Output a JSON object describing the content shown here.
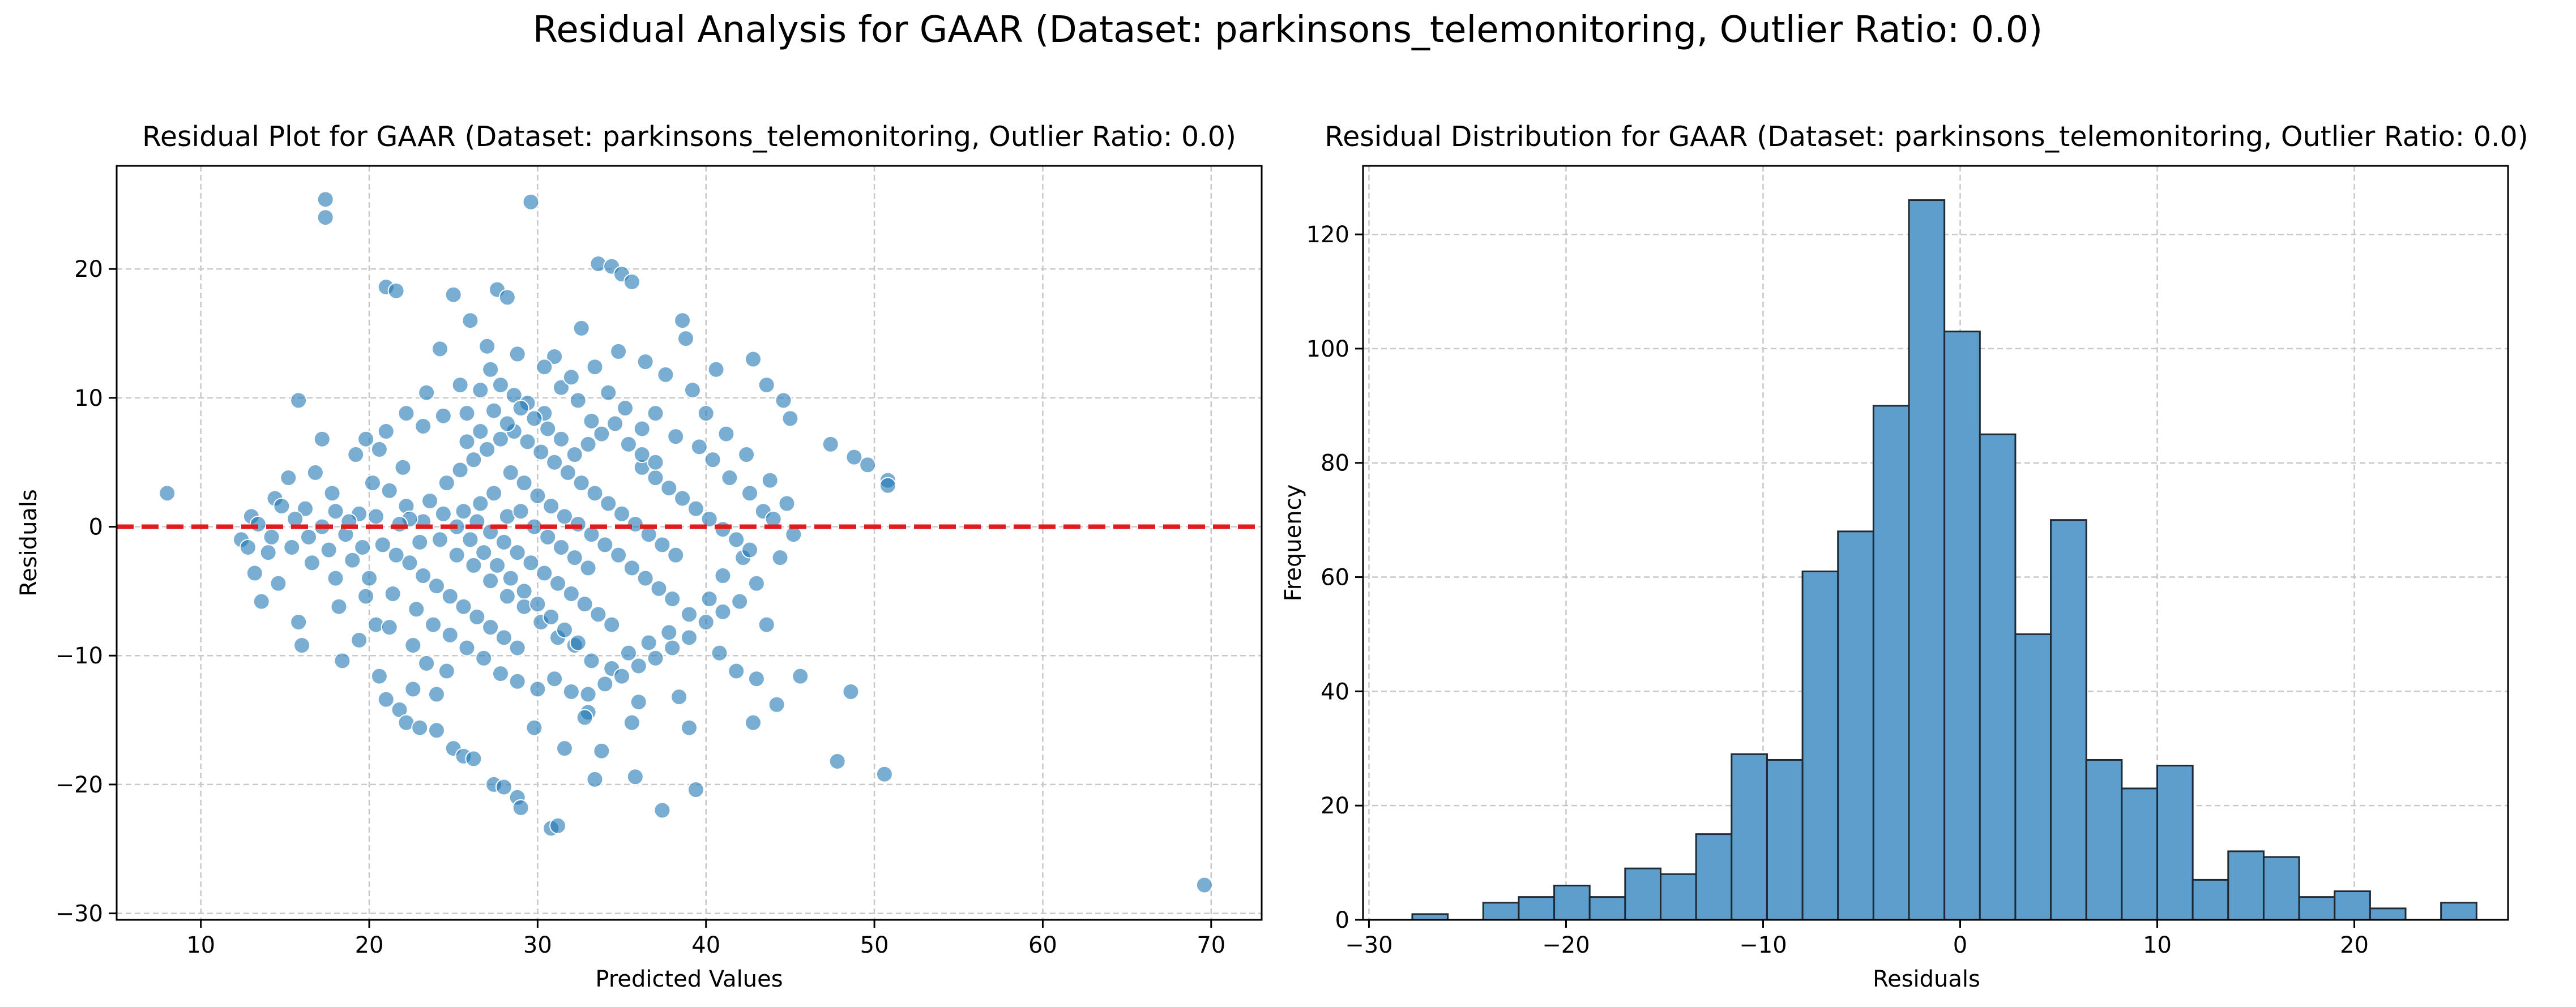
{
  "suptitle": "Residual Analysis for GAAR (Dataset: parkinsons_telemonitoring, Outlier Ratio: 0.0)",
  "colors": {
    "point": "#1f77b4",
    "bar": "#5d9ecd",
    "bar_edge": "#1f2a35",
    "zero_line": "#e31a1c",
    "grid": "#c8c8c8"
  },
  "chart_data": [
    {
      "type": "scatter",
      "title": "Residual Plot for GAAR (Dataset: parkinsons_telemonitoring, Outlier Ratio: 0.0)",
      "xlabel": "Predicted Values",
      "ylabel": "Residuals",
      "xlim": [
        5,
        73
      ],
      "ylim": [
        -30.5,
        28
      ],
      "xticks": [
        10,
        20,
        30,
        40,
        50,
        60,
        70
      ],
      "yticks": [
        -30,
        -20,
        -10,
        0,
        10,
        20
      ],
      "grid": true,
      "reference_line": {
        "y": 0,
        "style": "dashed",
        "color": "red"
      },
      "points": [
        [
          17.4,
          25.4
        ],
        [
          17.4,
          24.0
        ],
        [
          29.6,
          25.2
        ],
        [
          21.0,
          18.6
        ],
        [
          21.6,
          18.3
        ],
        [
          25.0,
          18.0
        ],
        [
          27.6,
          18.4
        ],
        [
          28.2,
          17.8
        ],
        [
          33.6,
          20.4
        ],
        [
          34.4,
          20.2
        ],
        [
          35.0,
          19.6
        ],
        [
          35.6,
          19.0
        ],
        [
          38.6,
          16.0
        ],
        [
          38.8,
          14.6
        ],
        [
          15.8,
          9.8
        ],
        [
          47.4,
          6.4
        ],
        [
          48.8,
          5.4
        ],
        [
          49.6,
          4.8
        ],
        [
          50.8,
          3.6
        ],
        [
          50.8,
          3.2
        ],
        [
          8.0,
          2.6
        ],
        [
          44.6,
          9.8
        ],
        [
          45.0,
          8.4
        ],
        [
          43.6,
          11.0
        ],
        [
          42.8,
          13.0
        ],
        [
          40.6,
          12.2
        ],
        [
          31.0,
          13.2
        ],
        [
          26.0,
          16.0
        ],
        [
          27.0,
          14.0
        ],
        [
          32.6,
          15.4
        ],
        [
          12.4,
          -1.0
        ],
        [
          13.2,
          -3.6
        ],
        [
          13.6,
          -5.8
        ],
        [
          15.8,
          -7.4
        ],
        [
          16.0,
          -9.2
        ],
        [
          18.4,
          -10.4
        ],
        [
          20.6,
          -11.6
        ],
        [
          21.0,
          -13.4
        ],
        [
          21.8,
          -14.2
        ],
        [
          22.2,
          -15.2
        ],
        [
          23.0,
          -15.6
        ],
        [
          24.0,
          -15.8
        ],
        [
          25.0,
          -17.2
        ],
        [
          25.6,
          -17.8
        ],
        [
          26.2,
          -18.0
        ],
        [
          27.4,
          -20.0
        ],
        [
          28.0,
          -20.2
        ],
        [
          28.8,
          -21.0
        ],
        [
          29.0,
          -21.8
        ],
        [
          30.8,
          -23.4
        ],
        [
          31.2,
          -23.2
        ],
        [
          33.4,
          -19.6
        ],
        [
          35.8,
          -19.4
        ],
        [
          37.4,
          -22.0
        ],
        [
          39.4,
          -20.4
        ],
        [
          42.8,
          -15.2
        ],
        [
          44.2,
          -13.8
        ],
        [
          45.6,
          -11.6
        ],
        [
          48.6,
          -12.8
        ],
        [
          47.8,
          -18.2
        ],
        [
          50.6,
          -19.2
        ],
        [
          69.6,
          -27.8
        ],
        [
          41.8,
          -11.2
        ],
        [
          43.0,
          -11.8
        ],
        [
          39.0,
          -15.6
        ],
        [
          36.0,
          -13.6
        ],
        [
          33.0,
          -14.4
        ],
        [
          29.8,
          -15.6
        ],
        [
          31.6,
          -17.2
        ],
        [
          33.8,
          -17.4
        ],
        [
          24.0,
          -13.0
        ],
        [
          22.6,
          -12.6
        ],
        [
          19.4,
          -8.8
        ],
        [
          20.4,
          -7.6
        ],
        [
          18.0,
          -4.0
        ],
        [
          14.6,
          -4.4
        ],
        [
          13.0,
          0.8
        ],
        [
          14.4,
          2.2
        ],
        [
          15.2,
          3.8
        ],
        [
          16.8,
          4.2
        ],
        [
          17.2,
          6.8
        ],
        [
          19.2,
          5.6
        ],
        [
          20.6,
          6.0
        ],
        [
          22.0,
          4.6
        ],
        [
          23.2,
          7.8
        ],
        [
          24.4,
          8.6
        ],
        [
          25.8,
          8.8
        ],
        [
          26.6,
          10.6
        ],
        [
          27.8,
          11.0
        ],
        [
          28.6,
          10.2
        ],
        [
          29.4,
          9.6
        ],
        [
          30.4,
          8.8
        ],
        [
          31.4,
          10.8
        ],
        [
          32.4,
          9.8
        ],
        [
          33.2,
          8.2
        ],
        [
          34.2,
          10.4
        ],
        [
          35.2,
          9.2
        ],
        [
          36.2,
          7.6
        ],
        [
          37.0,
          8.8
        ],
        [
          38.2,
          7.0
        ],
        [
          39.6,
          6.2
        ],
        [
          40.4,
          5.2
        ],
        [
          41.4,
          3.8
        ],
        [
          42.6,
          2.6
        ],
        [
          43.4,
          1.2
        ],
        [
          44.0,
          0.6
        ],
        [
          42.2,
          -2.4
        ],
        [
          41.0,
          -3.8
        ],
        [
          40.2,
          -5.6
        ],
        [
          39.0,
          -6.8
        ],
        [
          37.8,
          -8.2
        ],
        [
          36.6,
          -9.0
        ],
        [
          35.4,
          -9.8
        ],
        [
          34.4,
          -11.0
        ],
        [
          33.2,
          -10.4
        ],
        [
          32.2,
          -9.2
        ],
        [
          31.2,
          -8.6
        ],
        [
          30.2,
          -7.4
        ],
        [
          29.2,
          -6.2
        ],
        [
          28.2,
          -5.4
        ],
        [
          27.2,
          -4.2
        ],
        [
          26.2,
          -3.0
        ],
        [
          25.2,
          -2.2
        ],
        [
          24.2,
          -1.0
        ],
        [
          23.2,
          0.4
        ],
        [
          22.2,
          1.6
        ],
        [
          21.2,
          2.8
        ],
        [
          20.2,
          3.4
        ],
        [
          19.4,
          1.0
        ],
        [
          18.6,
          -0.6
        ],
        [
          17.6,
          -1.8
        ],
        [
          16.6,
          -2.8
        ],
        [
          15.4,
          -1.6
        ],
        [
          14.2,
          -0.8
        ],
        [
          13.4,
          0.2
        ],
        [
          16.2,
          1.4
        ],
        [
          17.8,
          2.6
        ],
        [
          19.0,
          -2.6
        ],
        [
          20.0,
          -4.0
        ],
        [
          21.4,
          -5.2
        ],
        [
          22.8,
          -6.4
        ],
        [
          23.8,
          -7.6
        ],
        [
          24.8,
          -8.4
        ],
        [
          25.8,
          -9.4
        ],
        [
          26.8,
          -10.2
        ],
        [
          27.8,
          -11.4
        ],
        [
          28.8,
          -12.0
        ],
        [
          30.0,
          -12.6
        ],
        [
          31.0,
          -11.8
        ],
        [
          32.0,
          -12.8
        ],
        [
          33.0,
          -13.0
        ],
        [
          34.0,
          -12.2
        ],
        [
          35.0,
          -11.6
        ],
        [
          36.0,
          -10.8
        ],
        [
          37.0,
          -10.2
        ],
        [
          38.0,
          -9.4
        ],
        [
          39.0,
          -8.6
        ],
        [
          40.0,
          -7.4
        ],
        [
          41.0,
          -6.6
        ],
        [
          42.0,
          -5.8
        ],
        [
          43.0,
          -4.4
        ],
        [
          28.4,
          4.2
        ],
        [
          29.2,
          3.4
        ],
        [
          30.0,
          2.4
        ],
        [
          30.8,
          1.6
        ],
        [
          31.6,
          0.8
        ],
        [
          32.4,
          0.2
        ],
        [
          33.2,
          -0.6
        ],
        [
          34.0,
          -1.4
        ],
        [
          34.8,
          -2.2
        ],
        [
          35.6,
          -3.2
        ],
        [
          36.4,
          -4.0
        ],
        [
          37.2,
          -4.8
        ],
        [
          38.0,
          -5.6
        ],
        [
          25.6,
          1.2
        ],
        [
          26.4,
          0.4
        ],
        [
          27.2,
          -0.4
        ],
        [
          28.0,
          -1.2
        ],
        [
          28.8,
          -2.0
        ],
        [
          29.6,
          -2.8
        ],
        [
          30.4,
          -3.6
        ],
        [
          31.2,
          -4.4
        ],
        [
          32.0,
          -5.2
        ],
        [
          32.8,
          -6.0
        ],
        [
          33.6,
          -6.8
        ],
        [
          34.4,
          -7.6
        ],
        [
          24.6,
          3.4
        ],
        [
          25.4,
          4.4
        ],
        [
          26.2,
          5.2
        ],
        [
          27.0,
          6.0
        ],
        [
          27.8,
          6.8
        ],
        [
          28.6,
          7.4
        ],
        [
          29.4,
          6.6
        ],
        [
          30.2,
          5.8
        ],
        [
          31.0,
          5.0
        ],
        [
          31.8,
          4.2
        ],
        [
          32.6,
          3.4
        ],
        [
          33.4,
          2.6
        ],
        [
          34.2,
          1.8
        ],
        [
          35.0,
          1.0
        ],
        [
          35.8,
          0.2
        ],
        [
          36.6,
          -0.6
        ],
        [
          37.4,
          -1.4
        ],
        [
          38.2,
          -2.2
        ],
        [
          22.4,
          -2.8
        ],
        [
          23.2,
          -3.8
        ],
        [
          24.0,
          -4.6
        ],
        [
          24.8,
          -5.4
        ],
        [
          25.6,
          -6.2
        ],
        [
          26.4,
          -7.0
        ],
        [
          27.2,
          -7.8
        ],
        [
          28.0,
          -8.6
        ],
        [
          28.8,
          -9.4
        ],
        [
          26.6,
          1.8
        ],
        [
          27.4,
          2.6
        ],
        [
          28.2,
          0.8
        ],
        [
          29.0,
          1.2
        ],
        [
          29.8,
          0.0
        ],
        [
          30.6,
          -0.8
        ],
        [
          31.4,
          -1.6
        ],
        [
          32.2,
          -2.4
        ],
        [
          33.0,
          -3.2
        ],
        [
          23.6,
          2.0
        ],
        [
          24.4,
          1.0
        ],
        [
          25.2,
          0.0
        ],
        [
          26.0,
          -1.0
        ],
        [
          26.8,
          -2.0
        ],
        [
          27.6,
          -3.0
        ],
        [
          28.4,
          -4.0
        ],
        [
          29.2,
          -5.0
        ],
        [
          30.0,
          -6.0
        ],
        [
          30.8,
          -7.0
        ],
        [
          31.6,
          -8.0
        ],
        [
          32.4,
          -9.0
        ],
        [
          36.2,
          4.6
        ],
        [
          37.0,
          3.8
        ],
        [
          37.8,
          3.0
        ],
        [
          38.6,
          2.2
        ],
        [
          39.4,
          1.4
        ],
        [
          40.2,
          0.6
        ],
        [
          41.0,
          -0.2
        ],
        [
          41.8,
          -1.0
        ],
        [
          42.6,
          -1.8
        ],
        [
          35.4,
          6.4
        ],
        [
          36.2,
          5.6
        ],
        [
          37.0,
          5.0
        ],
        [
          34.6,
          8.0
        ],
        [
          33.8,
          7.2
        ],
        [
          33.0,
          6.4
        ],
        [
          32.2,
          5.6
        ],
        [
          31.4,
          6.8
        ],
        [
          30.6,
          7.6
        ],
        [
          29.8,
          8.4
        ],
        [
          29.0,
          9.2
        ],
        [
          28.2,
          8.0
        ],
        [
          27.4,
          9.0
        ],
        [
          26.6,
          7.4
        ],
        [
          25.8,
          6.6
        ],
        [
          20.8,
          -1.4
        ],
        [
          21.6,
          -2.2
        ],
        [
          22.4,
          0.6
        ],
        [
          23.0,
          -1.2
        ],
        [
          21.8,
          0.2
        ],
        [
          20.4,
          0.8
        ],
        [
          19.6,
          -1.6
        ],
        [
          18.8,
          0.4
        ],
        [
          18.0,
          1.2
        ],
        [
          17.2,
          0.0
        ],
        [
          16.4,
          -0.8
        ],
        [
          15.6,
          0.6
        ],
        [
          14.8,
          1.6
        ],
        [
          14.0,
          -2.0
        ],
        [
          12.8,
          -1.6
        ],
        [
          18.2,
          -6.2
        ],
        [
          19.8,
          -5.4
        ],
        [
          21.2,
          -7.8
        ],
        [
          22.6,
          -9.2
        ],
        [
          23.4,
          -10.6
        ],
        [
          24.6,
          -11.2
        ],
        [
          32.8,
          -14.8
        ],
        [
          35.6,
          -15.2
        ],
        [
          38.4,
          -13.2
        ],
        [
          40.8,
          -9.8
        ],
        [
          43.6,
          -7.6
        ],
        [
          44.4,
          -2.4
        ],
        [
          45.2,
          -0.6
        ],
        [
          44.8,
          1.8
        ],
        [
          43.8,
          3.6
        ],
        [
          42.4,
          5.6
        ],
        [
          41.2,
          7.2
        ],
        [
          40.0,
          8.8
        ],
        [
          39.2,
          10.6
        ],
        [
          37.6,
          11.8
        ],
        [
          36.4,
          12.8
        ],
        [
          34.8,
          13.6
        ],
        [
          33.4,
          12.4
        ],
        [
          32.0,
          11.6
        ],
        [
          30.4,
          12.4
        ],
        [
          28.8,
          13.4
        ],
        [
          27.2,
          12.2
        ],
        [
          25.4,
          11.0
        ],
        [
          24.2,
          13.8
        ],
        [
          23.4,
          10.4
        ],
        [
          22.2,
          8.8
        ],
        [
          21.0,
          7.4
        ],
        [
          19.8,
          6.8
        ]
      ]
    },
    {
      "type": "bar",
      "title": "Residual Distribution for GAAR (Dataset: parkinsons_telemonitoring, Outlier Ratio: 0.0)",
      "xlabel": "Residuals",
      "ylabel": "Frequency",
      "xlim": [
        -30.3,
        27.8
      ],
      "ylim": [
        0,
        132
      ],
      "xticks": [
        -30,
        -20,
        -10,
        0,
        10,
        20
      ],
      "yticks": [
        0,
        20,
        40,
        60,
        80,
        100,
        120
      ],
      "grid": true,
      "bin_start": -27.8,
      "bin_width": 1.8,
      "values": [
        1,
        0,
        3,
        4,
        6,
        4,
        9,
        8,
        15,
        29,
        28,
        61,
        68,
        90,
        126,
        103,
        85,
        50,
        70,
        28,
        23,
        27,
        7,
        12,
        11,
        4,
        5,
        2,
        0,
        3
      ]
    }
  ]
}
